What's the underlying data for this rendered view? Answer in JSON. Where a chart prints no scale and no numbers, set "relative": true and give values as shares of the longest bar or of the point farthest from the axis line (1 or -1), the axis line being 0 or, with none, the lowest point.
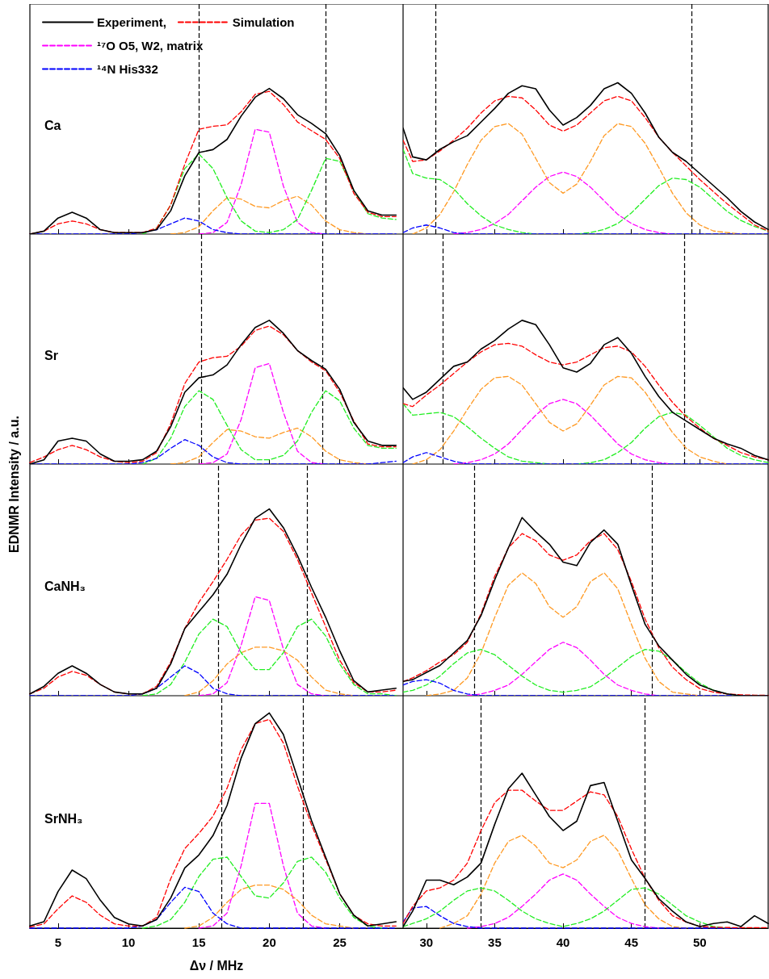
{
  "chart_data": [
    {
      "type": "line",
      "relative": true,
      "tick_labels": false,
      "legend": "top left",
      "annotations": [
        "Ca"
      ],
      "x": [
        3,
        4,
        5,
        6,
        7,
        8,
        9,
        10,
        11,
        12,
        13,
        14,
        15,
        16,
        17,
        18,
        19,
        20,
        21,
        22,
        23,
        24,
        25,
        26,
        27,
        28,
        29
      ],
      "xlim": [
        3,
        29.5
      ],
      "xticks": [
        5,
        10,
        15,
        20,
        25
      ],
      "ref_lines": [
        {
          "axis": "x",
          "value": 15.0,
          "color": "#000000",
          "line_style": "dashed"
        },
        {
          "axis": "x",
          "value": 24.0,
          "color": "#000000",
          "line_style": "dashed"
        }
      ],
      "series": [
        {
          "name": "Experiment,",
          "color": "#000000",
          "line_style": "solid",
          "values": [
            0,
            0.02,
            0.11,
            0.15,
            0.11,
            0.03,
            0.01,
            0.01,
            0.01,
            0.03,
            0.16,
            0.4,
            0.56,
            0.58,
            0.65,
            0.81,
            0.94,
            1,
            0.93,
            0.82,
            0.76,
            0.69,
            0.54,
            0.3,
            0.16,
            0.13,
            0.13
          ]
        },
        {
          "name": "Simulation",
          "color": "#ff0000",
          "line_style": "dashed",
          "values": [
            0,
            0.02,
            0.07,
            0.09,
            0.07,
            0.03,
            0.01,
            0.01,
            0.01,
            0.04,
            0.2,
            0.48,
            0.72,
            0.74,
            0.75,
            0.84,
            0.96,
            0.98,
            0.89,
            0.77,
            0.71,
            0.65,
            0.52,
            0.28,
            0.15,
            0.12,
            0.12
          ]
        },
        {
          "color": "#22ee22",
          "line_style": "dashed",
          "values": [
            null,
            null,
            null,
            null,
            null,
            null,
            null,
            null,
            0,
            0.04,
            0.2,
            0.45,
            0.55,
            0.45,
            0.25,
            0.09,
            0.02,
            0.01,
            0.03,
            0.1,
            0.3,
            0.52,
            0.5,
            0.3,
            0.14,
            0.11,
            0.1
          ]
        },
        {
          "color": "#ff9922",
          "line_style": "dashed",
          "values": [
            null,
            null,
            null,
            null,
            null,
            null,
            null,
            null,
            null,
            null,
            0,
            0.01,
            0.05,
            0.16,
            0.25,
            0.24,
            0.19,
            0.18,
            0.23,
            0.26,
            0.2,
            0.09,
            0.03,
            0.01,
            0,
            null,
            null
          ]
        },
        {
          "name": "¹⁷O O5, W2, matrix",
          "color": "#ff00ff",
          "line_style": "dashed",
          "values": [
            null,
            null,
            null,
            null,
            null,
            null,
            null,
            null,
            null,
            null,
            null,
            null,
            0,
            0.01,
            0.08,
            0.34,
            0.72,
            0.7,
            0.33,
            0.08,
            0.01,
            0,
            null,
            null,
            null,
            null,
            null
          ]
        },
        {
          "name": "¹⁴N His332",
          "color": "#0000ff",
          "line_style": "dashed",
          "values": [
            0,
            0,
            0,
            0,
            0,
            0,
            0,
            0,
            0.01,
            0.03,
            0.07,
            0.11,
            0.09,
            0.03,
            0.01,
            0,
            0,
            0,
            0,
            0,
            0,
            0,
            0,
            0,
            0,
            0,
            0
          ]
        }
      ]
    },
    {
      "type": "line",
      "relative": true,
      "tick_labels": false,
      "x": [
        28.3,
        29,
        30,
        31,
        32,
        33,
        34,
        35,
        36,
        37,
        38,
        39,
        40,
        41,
        42,
        43,
        44,
        45,
        46,
        47,
        48,
        49,
        50,
        51,
        52,
        53,
        54,
        55
      ],
      "xlim": [
        28.3,
        55
      ],
      "xticks": [
        30,
        35,
        40,
        45,
        50
      ],
      "ref_lines": [
        {
          "axis": "x",
          "value": 30.7,
          "color": "#000000",
          "line_style": "dashed"
        },
        {
          "axis": "x",
          "value": 49.4,
          "color": "#000000",
          "line_style": "dashed"
        }
      ],
      "series": [
        {
          "color": "#000000",
          "line_style": "solid",
          "values": [
            0.7,
            0.51,
            0.49,
            0.56,
            0.61,
            0.65,
            0.74,
            0.83,
            0.93,
            0.98,
            0.96,
            0.82,
            0.72,
            0.77,
            0.85,
            0.96,
            1,
            0.93,
            0.8,
            0.64,
            0.54,
            0.48,
            0.4,
            0.32,
            0.24,
            0.15,
            0.08,
            0.03
          ]
        },
        {
          "color": "#ff0000",
          "line_style": "dashed",
          "values": [
            0.62,
            0.48,
            0.49,
            0.55,
            0.62,
            0.7,
            0.8,
            0.88,
            0.91,
            0.9,
            0.82,
            0.72,
            0.68,
            0.72,
            0.8,
            0.88,
            0.91,
            0.88,
            0.77,
            0.64,
            0.54,
            0.45,
            0.36,
            0.28,
            0.2,
            0.13,
            0.06,
            0.02
          ]
        },
        {
          "color": "#22ee22",
          "line_style": "dashed",
          "values": [
            0.56,
            0.4,
            0.37,
            0.36,
            0.3,
            0.2,
            0.12,
            0.06,
            0.03,
            0.01,
            0,
            null,
            null,
            0,
            0.01,
            0.03,
            0.07,
            0.14,
            0.23,
            0.32,
            0.37,
            0.36,
            0.31,
            0.23,
            0.15,
            0.09,
            0.05,
            0.02
          ]
        },
        {
          "color": "#ff9922",
          "line_style": "dashed",
          "values": [
            null,
            0,
            0.04,
            0.13,
            0.28,
            0.46,
            0.62,
            0.71,
            0.73,
            0.66,
            0.5,
            0.34,
            0.27,
            0.33,
            0.48,
            0.65,
            0.73,
            0.71,
            0.6,
            0.44,
            0.27,
            0.14,
            0.06,
            0.02,
            0.01,
            0,
            null,
            null
          ]
        },
        {
          "color": "#ff00ff",
          "line_style": "dashed",
          "values": [
            null,
            null,
            null,
            null,
            0,
            0.01,
            0.03,
            0.07,
            0.13,
            0.22,
            0.31,
            0.38,
            0.41,
            0.38,
            0.31,
            0.22,
            0.13,
            0.07,
            0.03,
            0.01,
            0,
            null,
            null,
            null,
            null,
            null,
            null,
            null
          ]
        },
        {
          "color": "#0000ff",
          "line_style": "dashed",
          "values": [
            0.01,
            0.04,
            0.06,
            0.04,
            0.01,
            0,
            0,
            0,
            0,
            0,
            0,
            0,
            0,
            0,
            0,
            0,
            0,
            0,
            0,
            0,
            0,
            0,
            0,
            0,
            0,
            0,
            0,
            0
          ]
        }
      ]
    },
    {
      "type": "line",
      "relative": true,
      "tick_labels": false,
      "annotations": [
        "Sr"
      ],
      "x": [
        3,
        4,
        5,
        6,
        7,
        8,
        9,
        10,
        11,
        12,
        13,
        14,
        15,
        16,
        17,
        18,
        19,
        20,
        21,
        22,
        23,
        24,
        25,
        26,
        27,
        28,
        29
      ],
      "xlim": [
        3,
        29.5
      ],
      "xticks": [
        5,
        10,
        15,
        20,
        25
      ],
      "ref_lines": [
        {
          "axis": "x",
          "value": 15.2,
          "color": "#000000",
          "line_style": "dashed"
        },
        {
          "axis": "x",
          "value": 23.8,
          "color": "#000000",
          "line_style": "dashed"
        }
      ],
      "series": [
        {
          "color": "#000000",
          "line_style": "solid",
          "values": [
            0,
            0.03,
            0.16,
            0.18,
            0.16,
            0.07,
            0.02,
            0.02,
            0.03,
            0.09,
            0.26,
            0.5,
            0.6,
            0.62,
            0.69,
            0.83,
            0.95,
            1,
            0.91,
            0.79,
            0.72,
            0.66,
            0.52,
            0.29,
            0.16,
            0.13,
            0.13
          ]
        },
        {
          "color": "#ff0000",
          "line_style": "dashed",
          "values": [
            0.01,
            0.05,
            0.1,
            0.13,
            0.1,
            0.05,
            0.02,
            0.01,
            0.02,
            0.08,
            0.28,
            0.56,
            0.71,
            0.74,
            0.75,
            0.82,
            0.93,
            0.96,
            0.9,
            0.79,
            0.71,
            0.65,
            0.5,
            0.3,
            0.14,
            0.12,
            0.12
          ]
        },
        {
          "color": "#22ee22",
          "line_style": "dashed",
          "values": [
            null,
            null,
            null,
            null,
            null,
            null,
            null,
            null,
            0,
            0.04,
            0.18,
            0.4,
            0.51,
            0.45,
            0.27,
            0.1,
            0.03,
            0.03,
            0.06,
            0.16,
            0.36,
            0.51,
            0.44,
            0.25,
            0.13,
            0.11,
            0.11
          ]
        },
        {
          "color": "#ff9922",
          "line_style": "dashed",
          "values": [
            null,
            null,
            null,
            null,
            null,
            null,
            null,
            null,
            null,
            null,
            0,
            0.01,
            0.05,
            0.15,
            0.24,
            0.23,
            0.19,
            0.18,
            0.22,
            0.25,
            0.19,
            0.09,
            0.03,
            0.01,
            0,
            null,
            null
          ]
        },
        {
          "color": "#ff00ff",
          "line_style": "dashed",
          "values": [
            null,
            null,
            null,
            null,
            null,
            null,
            null,
            null,
            null,
            null,
            null,
            null,
            0,
            0.01,
            0.07,
            0.31,
            0.67,
            0.7,
            0.36,
            0.09,
            0.01,
            0,
            null,
            null,
            null,
            null,
            null
          ]
        },
        {
          "color": "#0000ff",
          "line_style": "dashed",
          "values": [
            0,
            0,
            0,
            0,
            0,
            0,
            0,
            0,
            0.01,
            0.04,
            0.11,
            0.17,
            0.13,
            0.05,
            0.01,
            0,
            0,
            0,
            0,
            0,
            0,
            0,
            0,
            0,
            0,
            0.01,
            0.02
          ]
        }
      ]
    },
    {
      "type": "line",
      "relative": true,
      "tick_labels": false,
      "x": [
        28.3,
        29,
        30,
        31,
        32,
        33,
        34,
        35,
        36,
        37,
        38,
        39,
        40,
        41,
        42,
        43,
        44,
        45,
        46,
        47,
        48,
        49,
        50,
        51,
        52,
        53,
        54,
        55
      ],
      "xlim": [
        28.3,
        55
      ],
      "xticks": [
        30,
        35,
        40,
        45,
        50
      ],
      "ref_lines": [
        {
          "axis": "x",
          "value": 31.2,
          "color": "#000000",
          "line_style": "dashed"
        },
        {
          "axis": "x",
          "value": 48.9,
          "color": "#000000",
          "line_style": "dashed"
        }
      ],
      "series": [
        {
          "color": "#000000",
          "line_style": "solid",
          "values": [
            0.53,
            0.45,
            0.5,
            0.59,
            0.68,
            0.71,
            0.8,
            0.86,
            0.94,
            1,
            0.97,
            0.83,
            0.67,
            0.64,
            0.7,
            0.83,
            0.88,
            0.77,
            0.61,
            0.47,
            0.36,
            0.3,
            0.24,
            0.18,
            0.14,
            0.11,
            0.06,
            0.03
          ]
        },
        {
          "color": "#ff0000",
          "line_style": "dashed",
          "values": [
            0.42,
            0.4,
            0.48,
            0.55,
            0.63,
            0.71,
            0.78,
            0.83,
            0.84,
            0.82,
            0.76,
            0.71,
            0.69,
            0.71,
            0.76,
            0.81,
            0.82,
            0.78,
            0.68,
            0.55,
            0.43,
            0.33,
            0.25,
            0.18,
            0.13,
            0.08,
            0.05,
            0.03
          ]
        },
        {
          "color": "#22ee22",
          "line_style": "dashed",
          "values": [
            0.42,
            0.34,
            0.35,
            0.36,
            0.33,
            0.26,
            0.18,
            0.11,
            0.05,
            0.02,
            0.01,
            0,
            null,
            0,
            0.01,
            0.03,
            0.08,
            0.15,
            0.25,
            0.33,
            0.36,
            0.34,
            0.27,
            0.19,
            0.11,
            0.06,
            0.03,
            0.01
          ]
        },
        {
          "color": "#ff9922",
          "line_style": "dashed",
          "values": [
            null,
            0,
            0.03,
            0.1,
            0.23,
            0.38,
            0.52,
            0.6,
            0.61,
            0.55,
            0.42,
            0.29,
            0.23,
            0.28,
            0.41,
            0.55,
            0.61,
            0.6,
            0.5,
            0.36,
            0.22,
            0.11,
            0.05,
            0.02,
            0,
            null,
            null,
            null
          ]
        },
        {
          "color": "#ff00ff",
          "line_style": "dashed",
          "values": [
            null,
            null,
            null,
            null,
            0,
            0.01,
            0.03,
            0.07,
            0.14,
            0.24,
            0.34,
            0.42,
            0.45,
            0.42,
            0.34,
            0.24,
            0.14,
            0.07,
            0.03,
            0.01,
            0,
            null,
            null,
            null,
            null,
            null,
            null,
            null
          ]
        },
        {
          "color": "#0000ff",
          "line_style": "dashed",
          "values": [
            0.01,
            0.05,
            0.08,
            0.05,
            0.02,
            0,
            0,
            0,
            0,
            0,
            0,
            0,
            0,
            0,
            0,
            0,
            0,
            0,
            0,
            0,
            0,
            0,
            0,
            0,
            0,
            0,
            0,
            0
          ]
        }
      ]
    },
    {
      "type": "line",
      "relative": true,
      "tick_labels": false,
      "annotations": [
        "CaNH₃"
      ],
      "ylabel": "EDNMR Intensity / a.u.",
      "x": [
        3,
        4,
        5,
        6,
        7,
        8,
        9,
        10,
        11,
        12,
        13,
        14,
        15,
        16,
        17,
        18,
        19,
        20,
        21,
        22,
        23,
        24,
        25,
        26,
        27,
        28,
        29
      ],
      "xlim": [
        3,
        29.5
      ],
      "xticks": [
        5,
        10,
        15,
        20,
        25
      ],
      "ref_lines": [
        {
          "axis": "x",
          "value": 16.4,
          "color": "#000000",
          "line_style": "dashed"
        },
        {
          "axis": "x",
          "value": 22.7,
          "color": "#000000",
          "line_style": "dashed"
        }
      ],
      "series": [
        {
          "color": "#000000",
          "line_style": "solid",
          "values": [
            0.01,
            0.05,
            0.12,
            0.16,
            0.12,
            0.06,
            0.02,
            0.01,
            0.01,
            0.04,
            0.17,
            0.36,
            0.45,
            0.54,
            0.65,
            0.81,
            0.95,
            1,
            0.9,
            0.75,
            0.58,
            0.42,
            0.24,
            0.08,
            0.02,
            0.03,
            0.04
          ]
        },
        {
          "color": "#ff0000",
          "line_style": "dashed",
          "values": [
            0.01,
            0.04,
            0.1,
            0.13,
            0.11,
            0.06,
            0.02,
            0.01,
            0.01,
            0.05,
            0.18,
            0.36,
            0.5,
            0.61,
            0.73,
            0.86,
            0.94,
            0.95,
            0.88,
            0.73,
            0.55,
            0.37,
            0.19,
            0.07,
            0.02,
            0.02,
            0.03
          ]
        },
        {
          "color": "#22ee22",
          "line_style": "dashed",
          "values": [
            null,
            null,
            null,
            null,
            null,
            null,
            null,
            null,
            0,
            0.01,
            0.06,
            0.18,
            0.33,
            0.41,
            0.37,
            0.23,
            0.14,
            0.14,
            0.23,
            0.37,
            0.41,
            0.32,
            0.17,
            0.06,
            0.01,
            0.01,
            0
          ]
        },
        {
          "color": "#ff9922",
          "line_style": "dashed",
          "values": [
            null,
            null,
            null,
            null,
            null,
            null,
            null,
            null,
            null,
            null,
            null,
            0,
            0.02,
            0.08,
            0.17,
            0.23,
            0.26,
            0.26,
            0.24,
            0.19,
            0.1,
            0.03,
            0.01,
            0,
            null,
            null,
            null
          ]
        },
        {
          "color": "#ff00ff",
          "line_style": "dashed",
          "values": [
            null,
            null,
            null,
            null,
            null,
            null,
            null,
            null,
            null,
            null,
            null,
            null,
            0,
            0.01,
            0.07,
            0.27,
            0.53,
            0.51,
            0.25,
            0.06,
            0.01,
            0,
            null,
            null,
            null,
            null,
            null
          ]
        },
        {
          "color": "#0000ff",
          "line_style": "dashed",
          "values": [
            0,
            0,
            0,
            0,
            0,
            0,
            0,
            0,
            0.01,
            0.04,
            0.1,
            0.16,
            0.12,
            0.04,
            0.01,
            0,
            0,
            0,
            0,
            0,
            0,
            0,
            0,
            0,
            0,
            0,
            0
          ]
        }
      ]
    },
    {
      "type": "line",
      "relative": true,
      "tick_labels": false,
      "x": [
        28.3,
        29,
        30,
        31,
        32,
        33,
        34,
        35,
        36,
        37,
        38,
        39,
        40,
        41,
        42,
        43,
        44,
        45,
        46,
        47,
        48,
        49,
        50,
        51,
        52,
        53,
        54,
        55
      ],
      "xlim": [
        28.3,
        55
      ],
      "xticks": [
        30,
        35,
        40,
        45,
        50
      ],
      "ref_lines": [
        {
          "axis": "x",
          "value": 33.5,
          "color": "#000000",
          "line_style": "dashed"
        },
        {
          "axis": "x",
          "value": 46.5,
          "color": "#000000",
          "line_style": "dashed"
        }
      ],
      "series": [
        {
          "color": "#000000",
          "line_style": "solid",
          "values": [
            0.08,
            0.09,
            0.13,
            0.17,
            0.24,
            0.31,
            0.45,
            0.65,
            0.83,
            1,
            0.92,
            0.85,
            0.75,
            0.73,
            0.86,
            0.93,
            0.85,
            0.62,
            0.4,
            0.28,
            0.2,
            0.12,
            0.06,
            0.03,
            0.01,
            0,
            0,
            0
          ]
        },
        {
          "color": "#ff0000",
          "line_style": "dashed",
          "values": [
            0.08,
            0.1,
            0.14,
            0.19,
            0.23,
            0.3,
            0.46,
            0.67,
            0.83,
            0.91,
            0.87,
            0.79,
            0.76,
            0.79,
            0.87,
            0.91,
            0.82,
            0.64,
            0.43,
            0.27,
            0.16,
            0.09,
            0.04,
            0.02,
            0.01,
            0.005,
            0.003,
            0.002
          ]
        },
        {
          "color": "#22ee22",
          "line_style": "dashed",
          "values": [
            0.02,
            0.03,
            0.06,
            0.11,
            0.18,
            0.24,
            0.26,
            0.23,
            0.17,
            0.11,
            0.06,
            0.03,
            0.02,
            0.03,
            0.05,
            0.1,
            0.16,
            0.22,
            0.26,
            0.25,
            0.2,
            0.13,
            0.07,
            0.03,
            0.01,
            0,
            null,
            null
          ]
        },
        {
          "color": "#ff9922",
          "line_style": "dashed",
          "values": [
            null,
            null,
            0,
            0.01,
            0.03,
            0.1,
            0.24,
            0.44,
            0.62,
            0.69,
            0.63,
            0.5,
            0.44,
            0.5,
            0.64,
            0.69,
            0.6,
            0.4,
            0.21,
            0.08,
            0.02,
            0.01,
            0,
            null,
            null,
            null,
            null,
            null
          ]
        },
        {
          "color": "#ff00ff",
          "line_style": "dashed",
          "values": [
            null,
            null,
            null,
            null,
            null,
            0,
            0.01,
            0.03,
            0.06,
            0.12,
            0.19,
            0.26,
            0.3,
            0.27,
            0.2,
            0.12,
            0.06,
            0.03,
            0.01,
            0,
            null,
            null,
            null,
            null,
            null,
            null,
            null,
            null
          ]
        },
        {
          "color": "#0000ff",
          "line_style": "dashed",
          "values": [
            0.06,
            0.08,
            0.09,
            0.07,
            0.03,
            0.01,
            0,
            0,
            0,
            0,
            0,
            0,
            0,
            0,
            0,
            0,
            0,
            0,
            0,
            0,
            0,
            0,
            0,
            0,
            0,
            0,
            0,
            0
          ]
        }
      ]
    },
    {
      "type": "line",
      "relative": true,
      "tick_labels": "x",
      "annotations": [
        "SrNH₃"
      ],
      "xlabel": "Δν / MHz",
      "x": [
        3,
        4,
        5,
        6,
        7,
        8,
        9,
        10,
        11,
        12,
        13,
        14,
        15,
        16,
        17,
        18,
        19,
        20,
        21,
        22,
        23,
        24,
        25,
        26,
        27,
        28,
        29
      ],
      "xlim": [
        3,
        29.5
      ],
      "xticks": [
        5,
        10,
        15,
        20,
        25
      ],
      "ref_lines": [
        {
          "axis": "x",
          "value": 16.6,
          "color": "#000000",
          "line_style": "dashed"
        },
        {
          "axis": "x",
          "value": 22.4,
          "color": "#000000",
          "line_style": "dashed"
        }
      ],
      "series": [
        {
          "color": "#000000",
          "line_style": "solid",
          "values": [
            0.01,
            0.03,
            0.17,
            0.27,
            0.23,
            0.13,
            0.05,
            0.02,
            0.01,
            0.04,
            0.14,
            0.28,
            0.34,
            0.43,
            0.57,
            0.79,
            0.95,
            1,
            0.9,
            0.7,
            0.5,
            0.33,
            0.16,
            0.06,
            0.01,
            0.02,
            0.03
          ]
        },
        {
          "color": "#ff0000",
          "line_style": "dashed",
          "values": [
            0.005,
            0.02,
            0.09,
            0.15,
            0.12,
            0.06,
            0.02,
            0.01,
            0.01,
            0.05,
            0.23,
            0.37,
            0.44,
            0.52,
            0.65,
            0.83,
            0.95,
            0.97,
            0.86,
            0.66,
            0.48,
            0.32,
            0.16,
            0.06,
            0.02,
            0.01,
            0.01
          ]
        },
        {
          "color": "#22ee22",
          "line_style": "dashed",
          "values": [
            null,
            null,
            null,
            null,
            null,
            null,
            null,
            null,
            0,
            0.01,
            0.04,
            0.12,
            0.24,
            0.32,
            0.33,
            0.24,
            0.15,
            0.14,
            0.21,
            0.31,
            0.33,
            0.26,
            0.14,
            0.05,
            0.01,
            0,
            null
          ]
        },
        {
          "color": "#ff9922",
          "line_style": "dashed",
          "values": [
            null,
            null,
            null,
            null,
            null,
            null,
            null,
            null,
            null,
            null,
            null,
            0,
            0.01,
            0.05,
            0.12,
            0.18,
            0.2,
            0.2,
            0.18,
            0.13,
            0.06,
            0.02,
            0.01,
            0,
            null,
            null,
            null
          ]
        },
        {
          "color": "#ff00ff",
          "line_style": "dashed",
          "values": [
            null,
            null,
            null,
            null,
            null,
            null,
            null,
            null,
            null,
            null,
            null,
            null,
            0,
            0.01,
            0.07,
            0.29,
            0.58,
            0.58,
            0.29,
            0.07,
            0.01,
            0,
            null,
            null,
            null,
            null,
            null
          ]
        },
        {
          "color": "#0000ff",
          "line_style": "dashed",
          "values": [
            0,
            0,
            0,
            0,
            0,
            0,
            0,
            0,
            0.01,
            0.04,
            0.12,
            0.19,
            0.17,
            0.07,
            0.02,
            0,
            0,
            0,
            0,
            0,
            0,
            0,
            0,
            0,
            0,
            0,
            0
          ]
        }
      ]
    },
    {
      "type": "line",
      "relative": true,
      "tick_labels": "x",
      "x": [
        28.3,
        29,
        30,
        31,
        32,
        33,
        34,
        35,
        36,
        37,
        38,
        39,
        40,
        41,
        42,
        43,
        44,
        45,
        46,
        47,
        48,
        49,
        50,
        51,
        52,
        53,
        54,
        55
      ],
      "xlim": [
        28.3,
        55
      ],
      "xticks": [
        30,
        35,
        40,
        45,
        50
      ],
      "ref_lines": [
        {
          "axis": "x",
          "value": 34.0,
          "color": "#000000",
          "line_style": "dashed"
        },
        {
          "axis": "x",
          "value": 46.0,
          "color": "#000000",
          "line_style": "dashed"
        }
      ],
      "series": [
        {
          "color": "#000000",
          "line_style": "solid",
          "values": [
            0.01,
            0.11,
            0.31,
            0.31,
            0.28,
            0.33,
            0.42,
            0.67,
            0.9,
            1,
            0.86,
            0.72,
            0.63,
            0.69,
            0.92,
            0.94,
            0.69,
            0.44,
            0.32,
            0.19,
            0.11,
            0.04,
            0.01,
            0.03,
            0.04,
            0.01,
            0.08,
            0.03
          ]
        },
        {
          "color": "#ff0000",
          "line_style": "dashed",
          "values": [
            0.03,
            0.14,
            0.24,
            0.26,
            0.31,
            0.42,
            0.63,
            0.81,
            0.89,
            0.89,
            0.82,
            0.76,
            0.76,
            0.82,
            0.88,
            0.86,
            0.72,
            0.51,
            0.32,
            0.18,
            0.08,
            0.04,
            0.01,
            0.007,
            0.004,
            0.003,
            0.003,
            0.003
          ]
        },
        {
          "color": "#22ee22",
          "line_style": "dashed",
          "values": [
            0.01,
            0.03,
            0.06,
            0.11,
            0.18,
            0.24,
            0.26,
            0.24,
            0.18,
            0.11,
            0.06,
            0.03,
            0.01,
            0.03,
            0.06,
            0.11,
            0.18,
            0.25,
            0.26,
            0.22,
            0.15,
            0.08,
            0.04,
            0.01,
            0,
            null,
            null,
            null
          ]
        },
        {
          "color": "#ff9922",
          "line_style": "dashed",
          "values": [
            null,
            null,
            null,
            0,
            0.03,
            0.08,
            0.22,
            0.42,
            0.56,
            0.6,
            0.53,
            0.42,
            0.39,
            0.44,
            0.56,
            0.6,
            0.5,
            0.32,
            0.15,
            0.06,
            0.01,
            0,
            null,
            null,
            null,
            null,
            null,
            null
          ]
        },
        {
          "color": "#ff00ff",
          "line_style": "dashed",
          "values": [
            null,
            null,
            null,
            null,
            null,
            0,
            0.01,
            0.03,
            0.07,
            0.14,
            0.22,
            0.31,
            0.35,
            0.31,
            0.22,
            0.14,
            0.07,
            0.03,
            0.01,
            0,
            null,
            null,
            null,
            null,
            null,
            null,
            null,
            null
          ]
        },
        {
          "color": "#0000ff",
          "line_style": "dashed",
          "values": [
            0.04,
            0.13,
            0.14,
            0.08,
            0.03,
            0.01,
            0,
            0,
            0,
            0,
            0,
            0,
            0,
            0,
            0,
            0,
            0,
            0,
            0,
            0,
            0,
            0,
            0,
            0,
            0,
            0,
            null,
            null
          ]
        }
      ]
    }
  ]
}
